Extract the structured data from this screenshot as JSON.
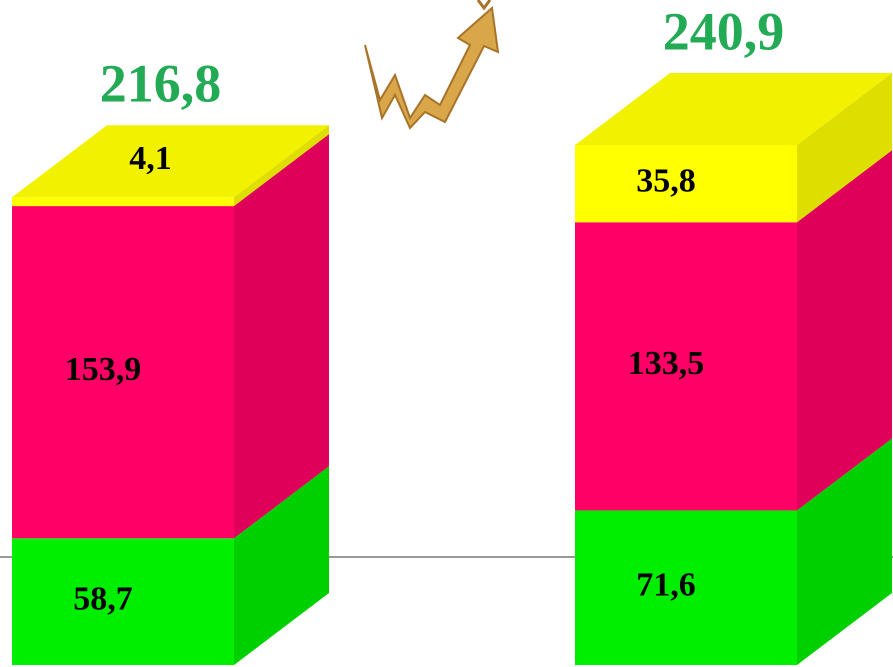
{
  "chart_data": {
    "type": "bar",
    "stacked": true,
    "categories": [
      null,
      null
    ],
    "series": [
      {
        "color": "#00ee00",
        "values": [
          58.7,
          71.6
        ],
        "value_labels": [
          "58,7",
          "71,6"
        ]
      },
      {
        "color": "#ff0066",
        "values": [
          153.9,
          133.5
        ],
        "value_labels": [
          "153,9",
          "133,5"
        ]
      },
      {
        "color": "#ffff00",
        "values": [
          4.1,
          35.8
        ],
        "value_labels": [
          "4,1",
          "35,8"
        ]
      }
    ],
    "totals": [
      216.8,
      240.9
    ],
    "total_labels": [
      "216,8",
      "240,9"
    ],
    "total_color": "#22aa55"
  }
}
